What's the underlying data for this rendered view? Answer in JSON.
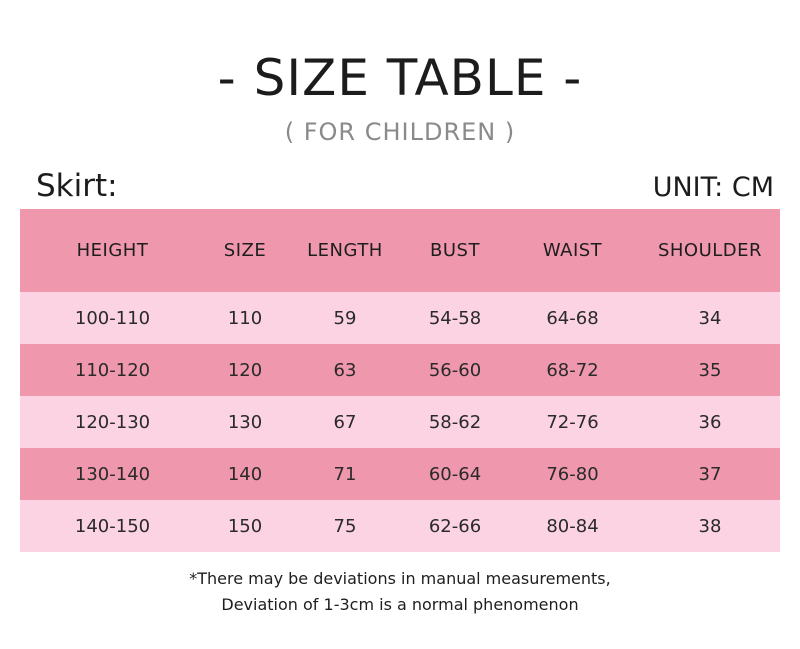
{
  "header": {
    "title": "- SIZE TABLE -",
    "subtitle": "( FOR CHILDREN )"
  },
  "section_label": "Skirt:",
  "unit_label": "UNIT: CM",
  "colors": {
    "header_row": "#ee97ad",
    "light_row": "#fbd3e2",
    "dark_row": "#ee97ad"
  },
  "table": {
    "columns": [
      "HEIGHT",
      "SIZE",
      "LENGTH",
      "BUST",
      "WAIST",
      "SHOULDER"
    ],
    "rows": [
      [
        "100-110",
        "110",
        "59",
        "54-58",
        "64-68",
        "34"
      ],
      [
        "110-120",
        "120",
        "63",
        "56-60",
        "68-72",
        "35"
      ],
      [
        "120-130",
        "130",
        "67",
        "58-62",
        "72-76",
        "36"
      ],
      [
        "130-140",
        "140",
        "71",
        "60-64",
        "76-80",
        "37"
      ],
      [
        "140-150",
        "150",
        "75",
        "62-66",
        "80-84",
        "38"
      ]
    ]
  },
  "footnote": {
    "line1": "*There may be deviations in manual measurements,",
    "line2": "Deviation of 1-3cm is a normal phenomenon"
  }
}
